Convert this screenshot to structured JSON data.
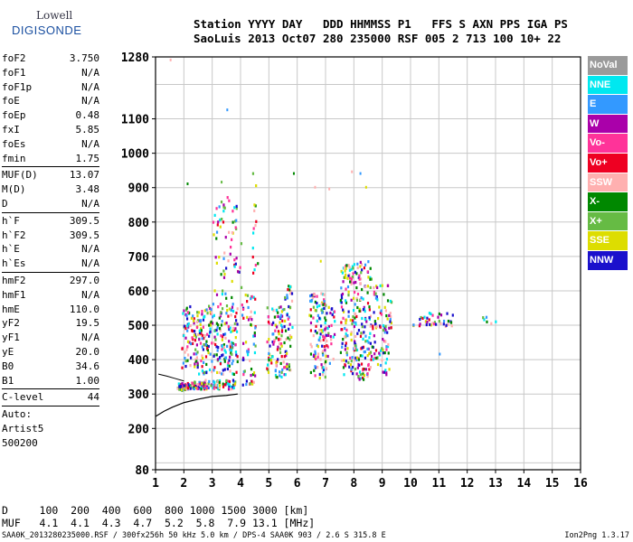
{
  "logo": {
    "top": "Lowell",
    "brand": "DIGISONDE"
  },
  "header": {
    "line1": "Station YYYY DAY   DDD HHMMSS P1   FFS S AXN PPS IGA PS",
    "line2": "SaoLuis 2013 Oct07 280 235000 RSF 005 2 713 100 10+ 22"
  },
  "params": {
    "group1": [
      {
        "label": "foF2",
        "value": "3.750"
      },
      {
        "label": "foF1",
        "value": "N/A"
      },
      {
        "label": "foF1p",
        "value": "N/A"
      },
      {
        "label": "foE",
        "value": "N/A"
      },
      {
        "label": "foEp",
        "value": "0.48"
      },
      {
        "label": "fxI",
        "value": "5.85"
      },
      {
        "label": "foEs",
        "value": "N/A"
      },
      {
        "label": "fmin",
        "value": "1.75"
      }
    ],
    "group2": [
      {
        "label": "MUF(D)",
        "value": "13.07"
      },
      {
        "label": "M(D)",
        "value": "3.48"
      },
      {
        "label": "D",
        "value": "N/A"
      }
    ],
    "group3": [
      {
        "label": "h`F",
        "value": "309.5"
      },
      {
        "label": "h`F2",
        "value": "309.5"
      },
      {
        "label": "h`E",
        "value": "N/A"
      },
      {
        "label": "h`Es",
        "value": "N/A"
      }
    ],
    "group4": [
      {
        "label": "hmF2",
        "value": "297.0"
      },
      {
        "label": "hmF1",
        "value": "N/A"
      },
      {
        "label": "hmE",
        "value": "110.0"
      },
      {
        "label": "yF2",
        "value": "19.5"
      },
      {
        "label": "yF1",
        "value": "N/A"
      },
      {
        "label": "yE",
        "value": "20.0"
      },
      {
        "label": "B0",
        "value": "34.6"
      },
      {
        "label": "B1",
        "value": "1.00"
      }
    ],
    "clevel": {
      "label": "C-level",
      "value": "44"
    },
    "auto": [
      "Auto:",
      "Artist5",
      "500200"
    ]
  },
  "legend": [
    {
      "label": "NoVal",
      "color": "#9a9a9a"
    },
    {
      "label": "NNE",
      "color": "#00e8f0"
    },
    {
      "label": "E",
      "color": "#3399ff"
    },
    {
      "label": "W",
      "color": "#aa00aa"
    },
    {
      "label": "Vo-",
      "color": "#ff3399"
    },
    {
      "label": "Vo+",
      "color": "#ee0022"
    },
    {
      "label": "SSW",
      "color": "#ffb0b0"
    },
    {
      "label": "X-",
      "color": "#008800"
    },
    {
      "label": "X+",
      "color": "#66bb44"
    },
    {
      "label": "SSE",
      "color": "#dddd00"
    },
    {
      "label": "NNW",
      "color": "#1a10cc"
    }
  ],
  "chart_data": {
    "type": "scatter",
    "xlim": [
      1,
      16
    ],
    "ylim": [
      80,
      1280
    ],
    "xticks": [
      "1",
      "2",
      "3",
      "4",
      "5",
      "6",
      "7",
      "8",
      "9",
      "10",
      "11",
      "12",
      "13",
      "14",
      "15",
      "16"
    ],
    "yticks": [
      {
        "value": 80,
        "label": "80"
      },
      {
        "value": 200,
        "label": "200"
      },
      {
        "value": 300,
        "label": "300"
      },
      {
        "value": 400,
        "label": "400"
      },
      {
        "value": 500,
        "label": "500"
      },
      {
        "value": 600,
        "label": "600"
      },
      {
        "value": 700,
        "label": "700"
      },
      {
        "value": 800,
        "label": "800"
      },
      {
        "value": 900,
        "label": "900"
      },
      {
        "value": 1000,
        "label": "1000"
      },
      {
        "value": 1100,
        "label": "1100"
      },
      {
        "value": 1280,
        "label": "1280"
      }
    ],
    "ylines": [
      80,
      100,
      200,
      300,
      400,
      500,
      600,
      700,
      800,
      900,
      1000,
      1100,
      1200,
      1280
    ],
    "grid": true,
    "clusters": [
      {
        "x0": 1.75,
        "x1": 2.2,
        "y0": 315,
        "y1": 335,
        "n": 60
      },
      {
        "x0": 2.2,
        "x1": 2.7,
        "y0": 318,
        "y1": 340,
        "n": 50
      },
      {
        "x0": 2.7,
        "x1": 3.8,
        "y0": 318,
        "y1": 345,
        "n": 60
      },
      {
        "x0": 1.9,
        "x1": 2.5,
        "y0": 380,
        "y1": 560,
        "n": 80
      },
      {
        "x0": 2.5,
        "x1": 3.9,
        "y0": 360,
        "y1": 560,
        "n": 200
      },
      {
        "x0": 3.0,
        "x1": 4.0,
        "y0": 560,
        "y1": 880,
        "n": 70
      },
      {
        "x0": 4.0,
        "x1": 4.5,
        "y0": 330,
        "y1": 600,
        "n": 60
      },
      {
        "x0": 4.4,
        "x1": 4.6,
        "y0": 600,
        "y1": 950,
        "n": 15
      },
      {
        "x0": 4.9,
        "x1": 5.5,
        "y0": 350,
        "y1": 560,
        "n": 90
      },
      {
        "x0": 5.5,
        "x1": 5.8,
        "y0": 360,
        "y1": 620,
        "n": 50
      },
      {
        "x0": 6.4,
        "x1": 7.0,
        "y0": 350,
        "y1": 600,
        "n": 110
      },
      {
        "x0": 6.9,
        "x1": 7.3,
        "y0": 380,
        "y1": 560,
        "n": 30
      },
      {
        "x0": 7.5,
        "x1": 8.6,
        "y0": 345,
        "y1": 690,
        "n": 250
      },
      {
        "x0": 8.6,
        "x1": 9.3,
        "y0": 360,
        "y1": 620,
        "n": 90
      },
      {
        "x0": 10.0,
        "x1": 11.5,
        "y0": 500,
        "y1": 540,
        "n": 40
      },
      {
        "x0": 12.5,
        "x1": 13.0,
        "y0": 505,
        "y1": 530,
        "n": 6
      }
    ],
    "sparse": [
      {
        "x": 1.5,
        "y": 1275
      },
      {
        "x": 2.1,
        "y": 915
      },
      {
        "x": 3.5,
        "y": 1130
      },
      {
        "x": 3.3,
        "y": 920
      },
      {
        "x": 5.85,
        "y": 945
      },
      {
        "x": 6.8,
        "y": 690
      },
      {
        "x": 7.1,
        "y": 900
      },
      {
        "x": 7.9,
        "y": 950
      },
      {
        "x": 8.2,
        "y": 945
      },
      {
        "x": 8.4,
        "y": 905
      },
      {
        "x": 6.6,
        "y": 905
      },
      {
        "x": 11.0,
        "y": 420
      }
    ],
    "trace": [
      [
        1.0,
        235
      ],
      [
        1.3,
        250
      ],
      [
        1.6,
        262
      ],
      [
        2.0,
        275
      ],
      [
        2.5,
        285
      ],
      [
        3.0,
        293
      ],
      [
        3.5,
        296
      ],
      [
        3.9,
        300
      ]
    ],
    "trace2": [
      [
        1.1,
        358
      ],
      [
        1.4,
        352
      ],
      [
        1.7,
        345
      ],
      [
        2.0,
        338
      ]
    ]
  },
  "bottom": {
    "line1": "D     100  200  400  600  800 1000 1500 3000 [km]",
    "line2": "MUF   4.1  4.1  4.3  4.7  5.2  5.8  7.9 13.1 [MHz]"
  },
  "footer": {
    "left": "SAA0K_2013280235000.RSF / 300fx256h 50 kHz 5.0 km / DPS-4 SAA0K 903 / 2.6 S 315.8 E",
    "right": "Ion2Png 1.3.17"
  }
}
